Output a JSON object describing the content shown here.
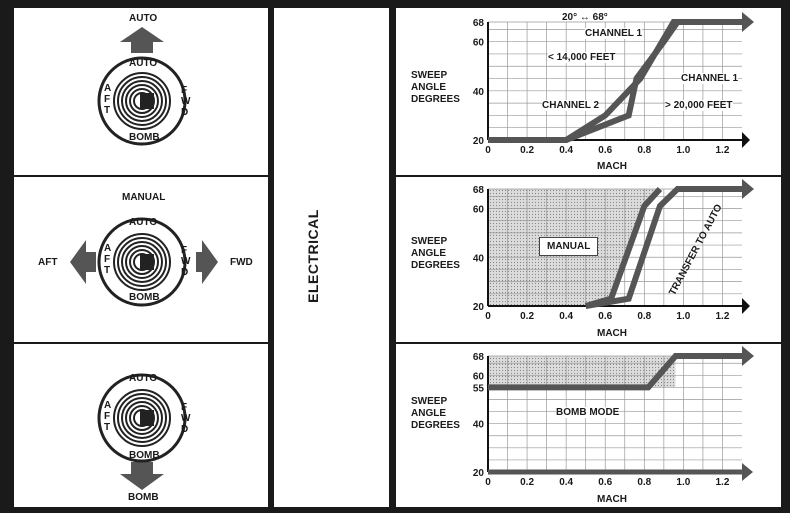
{
  "section_label": "ELECTRICAL",
  "panels": [
    {
      "dial": {
        "top": "AUTO",
        "left": "AFT",
        "right": "FWD",
        "bottom": "BOMB"
      },
      "arrow_label": "AUTO",
      "chart": {
        "y_label": [
          "SWEEP",
          "ANGLE",
          "DEGREES"
        ],
        "x_label": "MACH",
        "annotations": [
          "20° ↔ 68°",
          "CHANNEL 1",
          "< 14,000 FEET",
          "CHANNEL 1",
          "CHANNEL 2",
          "> 20,000 FEET"
        ]
      }
    },
    {
      "dial": {
        "top": "AUTO",
        "left": "AFT",
        "right": "FWD",
        "bottom": "BOMB"
      },
      "top_label": "MANUAL",
      "left_label": "AFT",
      "right_label": "FWD",
      "chart": {
        "y_label": [
          "SWEEP",
          "ANGLE",
          "DEGREES"
        ],
        "x_label": "MACH",
        "annotations": [
          "MANUAL",
          "TRANSFER TO AUTO"
        ]
      }
    },
    {
      "dial": {
        "top": "AUTO",
        "left": "AFT",
        "right": "FWD",
        "bottom": "BOMB"
      },
      "arrow_label": "BOMB",
      "chart": {
        "y_label": [
          "SWEEP",
          "ANGLE",
          "DEGREES"
        ],
        "x_label": "MACH",
        "annotations": [
          "BOMB MODE"
        ]
      }
    }
  ],
  "chart_data": [
    {
      "type": "line",
      "x_ticks": [
        "0",
        "0.2",
        "0.4",
        "0.6",
        "0.8",
        "1.0",
        "1.2"
      ],
      "y_ticks": [
        "20",
        "40",
        "60",
        "68"
      ],
      "xlim": [
        0,
        1.3
      ],
      "ylim": [
        20,
        68
      ],
      "series": [
        {
          "name": "CHANNEL 1",
          "points": [
            [
              0,
              20
            ],
            [
              0.4,
              20
            ],
            [
              0.6,
              30
            ],
            [
              0.78,
              45
            ],
            [
              0.95,
              68
            ],
            [
              1.3,
              68
            ]
          ]
        },
        {
          "name": "CHANNEL 2",
          "points": [
            [
              0,
              20
            ],
            [
              0.4,
              20
            ],
            [
              0.72,
              30
            ],
            [
              0.76,
              45
            ],
            [
              0.9,
              60
            ],
            [
              0.97,
              68
            ],
            [
              1.3,
              68
            ]
          ]
        }
      ]
    },
    {
      "type": "area",
      "x_ticks": [
        "0",
        "0.2",
        "0.4",
        "0.6",
        "0.8",
        "1.0",
        "1.2"
      ],
      "y_ticks": [
        "20",
        "40",
        "60",
        "68"
      ],
      "xlim": [
        0,
        1.3
      ],
      "ylim": [
        20,
        68
      ],
      "series": [
        {
          "name": "",
          "points": [
            [
              0.5,
              20
            ],
            [
              0.72,
              23
            ],
            [
              0.88,
              61
            ],
            [
              0.97,
              68
            ],
            [
              1.3,
              68
            ]
          ]
        },
        {
          "name": "",
          "points": [
            [
              0.5,
              20
            ],
            [
              0.63,
              23
            ],
            [
              0.8,
              61
            ],
            [
              0.88,
              68
            ]
          ]
        }
      ]
    },
    {
      "type": "line",
      "x_ticks": [
        "0",
        "0.2",
        "0.4",
        "0.6",
        "0.8",
        "1.0",
        "1.2"
      ],
      "y_ticks": [
        "20",
        "40",
        "55",
        "60",
        "68"
      ],
      "xlim": [
        0,
        1.3
      ],
      "ylim": [
        20,
        68
      ],
      "series": [
        {
          "name": "",
          "points": [
            [
              0,
              55
            ],
            [
              0.82,
              55
            ],
            [
              0.96,
              68
            ],
            [
              1.3,
              68
            ]
          ]
        }
      ]
    }
  ]
}
